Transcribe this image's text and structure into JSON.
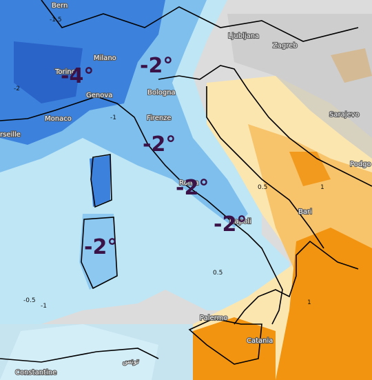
{
  "map": {
    "cities": [
      "Bern",
      "Milano",
      "Torino",
      "Genova",
      "Monaco",
      "rseille",
      "Bologna",
      "Firenze",
      "Roma",
      "Napoli",
      "Ljubljana",
      "Zagreb",
      "Sarajevo",
      "Podgo",
      "Bari",
      "Palermo",
      "Catania",
      "Constantine",
      "تونس"
    ],
    "anomaly_labels": [
      "-4°",
      "-2°",
      "-2°",
      "-2°",
      "-2°",
      "-2°"
    ],
    "contour_labels": [
      "-1.5",
      "-2",
      "-1",
      "0.5",
      "1",
      "0.5",
      "-0.5",
      "-1",
      "1"
    ]
  }
}
